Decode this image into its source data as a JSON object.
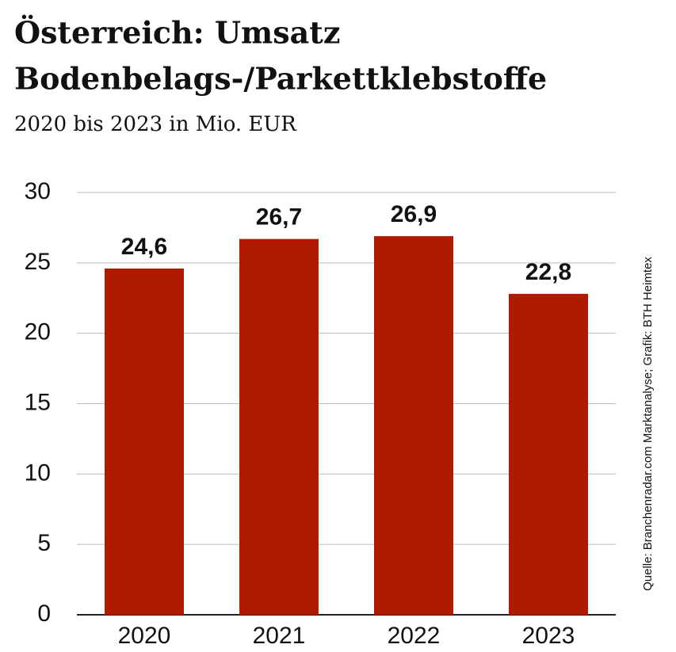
{
  "chart_data": {
    "type": "bar",
    "title": [
      "Österreich: Umsatz",
      "Bodenbelags-/Parkettklebstoffe"
    ],
    "subtitle": "2020 bis 2023 in Mio. EUR",
    "source": "Quelle: Branchenradar.com Marktanalyse; Grafik: BTH Heimtex",
    "categories": [
      "2020",
      "2021",
      "2022",
      "2023"
    ],
    "values": [
      24.6,
      26.7,
      26.9,
      22.8
    ],
    "value_labels": [
      "24,6",
      "26,7",
      "26,9",
      "22,8"
    ],
    "color": "#b01a00",
    "ylim": [
      0,
      30
    ],
    "yticks": [
      0,
      5,
      10,
      15,
      20,
      25,
      30
    ],
    "grid": true
  }
}
